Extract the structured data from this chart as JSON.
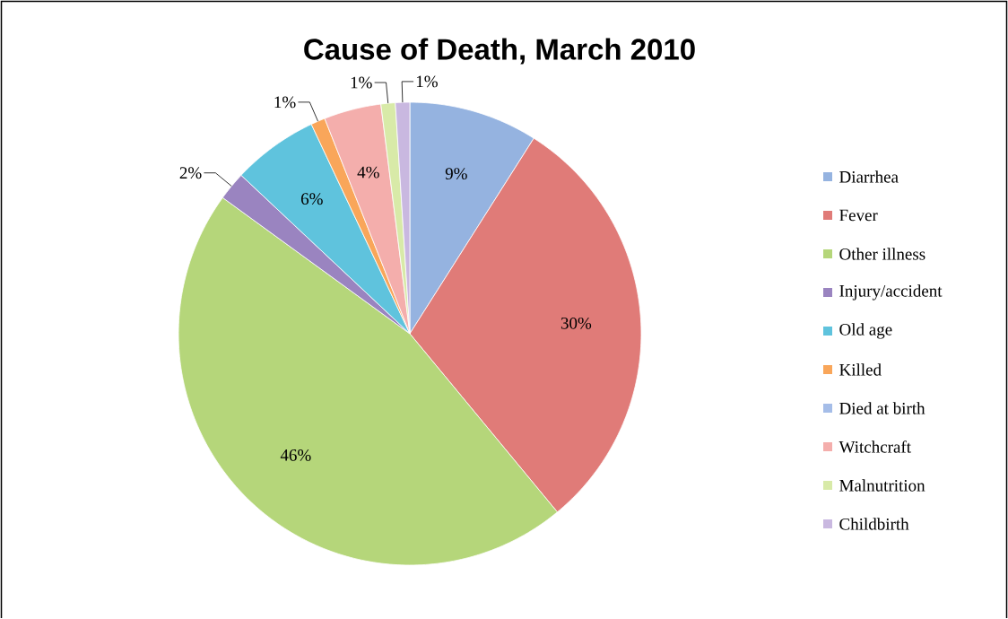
{
  "chart_data": {
    "type": "pie",
    "title": "Cause of Death, March 2010",
    "categories": [
      "Diarrhea",
      "Fever",
      "Other illness",
      "Injury/accident",
      "Old age",
      "Killed",
      "Died at birth",
      "Witchcraft",
      "Malnutrition",
      "Childbirth"
    ],
    "values": [
      9,
      30,
      46,
      2,
      6,
      1,
      0,
      4,
      1,
      1
    ],
    "value_labels": [
      "9%",
      "30%",
      "46%",
      "2%",
      "6%",
      "1%",
      null,
      "4%",
      "1%",
      "1%"
    ],
    "colors": [
      "#95b3e0",
      "#e07b78",
      "#b5d67a",
      "#9a84c0",
      "#5fc3dd",
      "#f9a65a",
      "#a5bde8",
      "#f4aeac",
      "#d8eaa8",
      "#c9b8e0"
    ],
    "legend": "right"
  }
}
